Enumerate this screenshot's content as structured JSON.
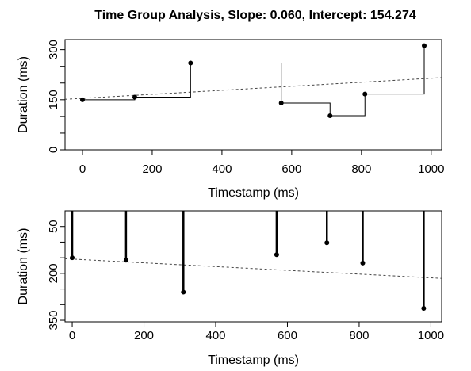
{
  "title": "Time Group Analysis, Slope: 0.060, Intercept: 154.274",
  "chart_data": [
    {
      "type": "line",
      "subtype": "step",
      "xlabel": "Timestamp (ms)",
      "ylabel": "Duration (ms)",
      "xlim": [
        -50,
        1030
      ],
      "ylim": [
        0,
        330
      ],
      "y_reversed": false,
      "xticks": [
        0,
        200,
        400,
        600,
        800,
        1000
      ],
      "yticks": [
        0,
        150,
        300
      ],
      "y_minor_ticks": [
        50,
        100,
        200,
        250
      ],
      "points": {
        "x": [
          0,
          150,
          310,
          570,
          710,
          810,
          980
        ],
        "y": [
          150,
          158,
          260,
          140,
          102,
          167,
          312
        ]
      },
      "trend_line": {
        "slope": 0.06,
        "intercept": 154.274,
        "style": "dashed"
      },
      "grid": false
    },
    {
      "type": "line",
      "subtype": "hanging-lines",
      "xlabel": "Timestamp (ms)",
      "ylabel": "Duration (ms)",
      "xlim": [
        -20,
        1030
      ],
      "ylim": [
        355,
        0
      ],
      "y_reversed": true,
      "xticks": [
        0,
        200,
        400,
        600,
        800,
        1000
      ],
      "yticks": [
        50,
        200,
        350
      ],
      "y_minor_ticks": [
        100,
        150,
        250,
        300
      ],
      "points": {
        "x": [
          0,
          150,
          310,
          570,
          710,
          810,
          980
        ],
        "y": [
          150,
          158,
          260,
          140,
          102,
          167,
          312
        ]
      },
      "trend_line": {
        "slope": 0.06,
        "intercept": 154.274,
        "style": "dashed"
      },
      "grid": false
    }
  ]
}
